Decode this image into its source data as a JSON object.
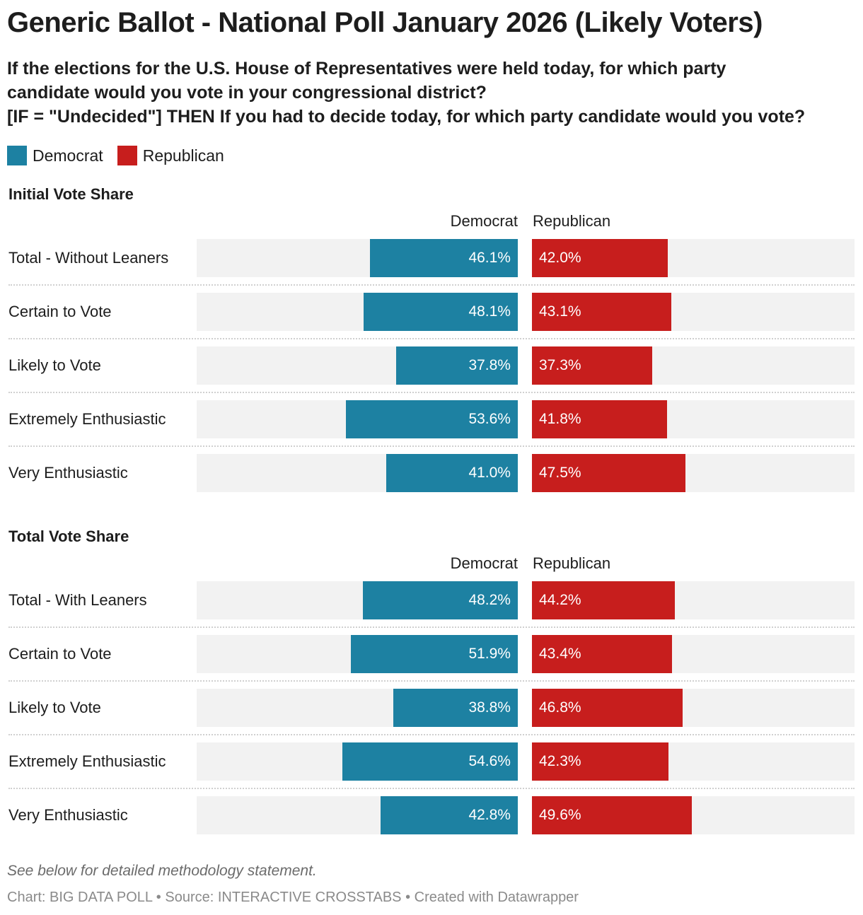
{
  "title": "Generic Ballot - National Poll January 2026 (Likely Voters)",
  "subtitle": [
    "If the elections for the U.S. House of Representatives were held today, for which party",
    "candidate would you vote in your congressional district?",
    "[IF = \"Undecided\"] THEN If you had to decide today, for which party candidate would you vote?"
  ],
  "legend": [
    {
      "label": "Democrat",
      "color": "#1d81a2"
    },
    {
      "label": "Republican",
      "color": "#c71e1d"
    }
  ],
  "chart_data": {
    "type": "bar",
    "orientation": "horizontal-split",
    "xlim": [
      0,
      100
    ],
    "unit": "%",
    "colors": {
      "Democrat": "#1d81a2",
      "Republican": "#c71e1d",
      "background": "#f2f2f2"
    },
    "columns": [
      "Democrat",
      "Republican"
    ],
    "sections": [
      {
        "title": "Initial Vote Share",
        "categories": [
          "Total - Without Leaners",
          "Certain to Vote",
          "Likely to Vote",
          "Extremely Enthusiastic",
          "Very Enthusiastic"
        ],
        "series": [
          {
            "name": "Democrat",
            "values": [
              46.1,
              48.1,
              37.8,
              53.6,
              41.0
            ]
          },
          {
            "name": "Republican",
            "values": [
              42.0,
              43.1,
              37.3,
              41.8,
              47.5
            ]
          }
        ]
      },
      {
        "title": "Total Vote Share",
        "categories": [
          "Total - With Leaners",
          "Certain to Vote",
          "Likely to Vote",
          "Extremely Enthusiastic",
          "Very Enthusiastic"
        ],
        "series": [
          {
            "name": "Democrat",
            "values": [
              48.2,
              51.9,
              38.8,
              54.6,
              42.8
            ]
          },
          {
            "name": "Republican",
            "values": [
              44.2,
              43.4,
              46.8,
              42.3,
              49.6
            ]
          }
        ]
      }
    ]
  },
  "footer": {
    "note": "See below for detailed methodology statement.",
    "credit": "Chart: BIG DATA POLL • Source: INTERACTIVE CROSSTABS • Created with Datawrapper"
  }
}
